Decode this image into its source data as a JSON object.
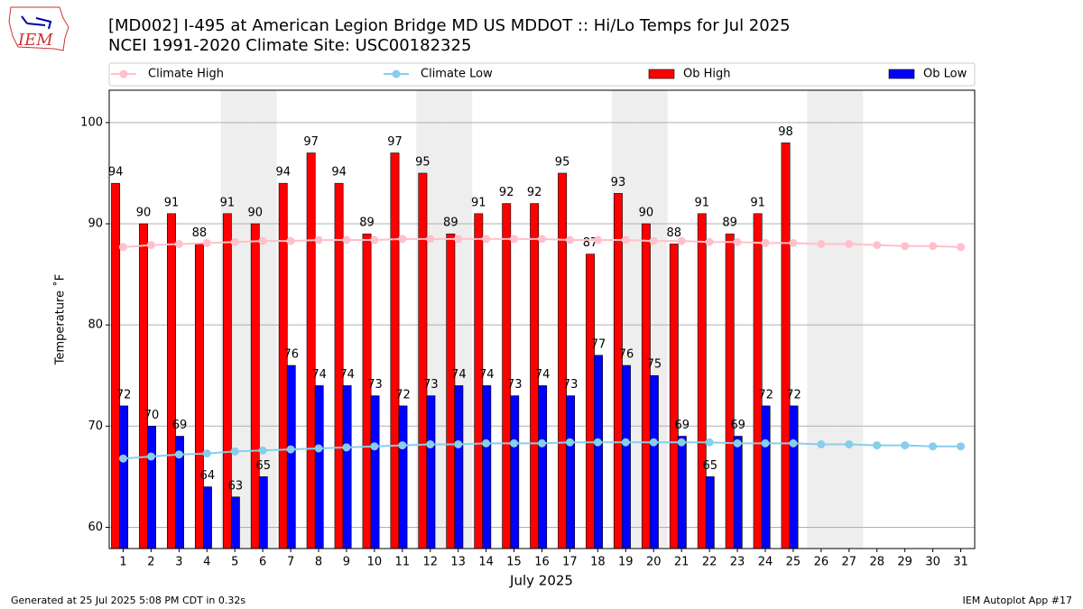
{
  "logo": "IEM",
  "footer": {
    "left": "Generated at 25 Jul 2025 5:08 PM CDT in 0.32s",
    "right": "IEM Autoplot App #17"
  },
  "chart_data": {
    "type": "bar",
    "title": "[MD002] I-495 at American Legion Bridge  MD US MDDOT :: Hi/Lo Temps for Jul 2025",
    "subtitle": "NCEI 1991-2020 Climate Site: USC00182325",
    "x_label": "July 2025",
    "y_label": "Temperature ˚F",
    "categories": [
      "1",
      "2",
      "3",
      "4",
      "5",
      "6",
      "7",
      "8",
      "9",
      "10",
      "11",
      "12",
      "13",
      "14",
      "15",
      "16",
      "17",
      "18",
      "19",
      "20",
      "21",
      "22",
      "23",
      "24",
      "25",
      "26",
      "27",
      "28",
      "29",
      "30",
      "31"
    ],
    "weekend_days": [
      5,
      6,
      12,
      13,
      19,
      20,
      26,
      27
    ],
    "weekend_color": "#eeeeee",
    "ylim": [
      57.9,
      103.2
    ],
    "yticks": [
      60,
      70,
      80,
      90,
      100
    ],
    "grid": true,
    "series": [
      {
        "name": "Climate High",
        "kind": "line",
        "color": "#ffc0cb",
        "values": [
          87.7,
          87.9,
          88.0,
          88.1,
          88.2,
          88.3,
          88.3,
          88.4,
          88.4,
          88.4,
          88.5,
          88.5,
          88.5,
          88.5,
          88.5,
          88.5,
          88.4,
          88.4,
          88.4,
          88.3,
          88.3,
          88.2,
          88.2,
          88.1,
          88.1,
          88.0,
          88.0,
          87.9,
          87.8,
          87.8,
          87.7
        ]
      },
      {
        "name": "Climate Low",
        "kind": "line",
        "color": "#87ceeb",
        "values": [
          66.8,
          67.0,
          67.2,
          67.3,
          67.5,
          67.6,
          67.7,
          67.8,
          67.9,
          68.0,
          68.1,
          68.2,
          68.2,
          68.3,
          68.3,
          68.3,
          68.4,
          68.4,
          68.4,
          68.4,
          68.4,
          68.4,
          68.3,
          68.3,
          68.3,
          68.2,
          68.2,
          68.1,
          68.1,
          68.0,
          68.0
        ]
      },
      {
        "name": "Ob High",
        "kind": "bar",
        "color": "#ff0000",
        "values": [
          94,
          90,
          91,
          88,
          91,
          90,
          94,
          97,
          94,
          89,
          97,
          95,
          89,
          91,
          92,
          92,
          95,
          87,
          93,
          90,
          88,
          91,
          89,
          91,
          98,
          null,
          null,
          null,
          null,
          null,
          null
        ]
      },
      {
        "name": "Ob Low",
        "kind": "bar",
        "color": "#0000ff",
        "values": [
          72,
          70,
          69,
          64,
          63,
          65,
          76,
          74,
          74,
          73,
          72,
          73,
          74,
          74,
          73,
          74,
          73,
          77,
          76,
          75,
          69,
          65,
          69,
          72,
          72,
          null,
          null,
          null,
          null,
          null,
          null
        ]
      }
    ]
  }
}
